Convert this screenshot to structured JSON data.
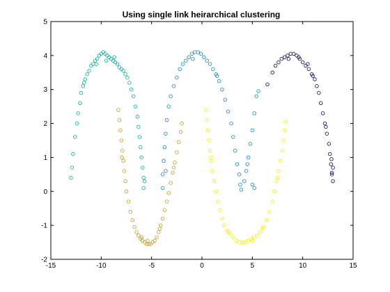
{
  "chart_data": {
    "type": "scatter",
    "title": "Using single link heirarchical clustering",
    "xlabel": "",
    "ylabel": "",
    "xlim": [
      -15,
      15
    ],
    "ylim": [
      -2,
      5
    ],
    "xticks": [
      -15,
      -10,
      -5,
      0,
      5,
      10,
      15
    ],
    "yticks": [
      -2,
      -1,
      0,
      1,
      2,
      3,
      4,
      5
    ],
    "grid": false,
    "marker": "open-circle",
    "series": [
      {
        "color": "#20b2a0",
        "points": [
          [
            -13.0,
            0.4
          ],
          [
            -12.9,
            0.7
          ],
          [
            -12.8,
            1.1
          ],
          [
            -12.6,
            1.6
          ],
          [
            -12.4,
            2.0
          ],
          [
            -12.3,
            2.3
          ],
          [
            -12.1,
            2.6
          ],
          [
            -12.0,
            2.9
          ],
          [
            -11.8,
            3.1
          ],
          [
            -11.6,
            3.3
          ],
          [
            -11.4,
            3.45
          ],
          [
            -11.2,
            3.55
          ],
          [
            -11.0,
            3.7
          ],
          [
            -10.8,
            3.75
          ],
          [
            -10.6,
            3.85
          ],
          [
            -10.4,
            3.9
          ],
          [
            -10.2,
            4.0
          ],
          [
            -10.0,
            4.05
          ],
          [
            -9.8,
            4.1
          ],
          [
            -9.6,
            4.05
          ],
          [
            -9.4,
            4.0
          ],
          [
            -9.2,
            3.95
          ],
          [
            -9.0,
            3.9
          ],
          [
            -8.8,
            3.85
          ],
          [
            -8.6,
            3.8
          ],
          [
            -8.4,
            3.75
          ],
          [
            -8.2,
            3.65
          ],
          [
            -8.0,
            3.6
          ],
          [
            -7.8,
            3.55
          ],
          [
            -7.6,
            3.45
          ],
          [
            -7.4,
            3.35
          ],
          [
            -7.2,
            3.2
          ],
          [
            -7.0,
            3.0
          ],
          [
            -6.8,
            2.8
          ],
          [
            -6.6,
            2.5
          ],
          [
            -6.4,
            2.2
          ],
          [
            -6.3,
            1.9
          ],
          [
            -6.2,
            1.6
          ],
          [
            -6.1,
            1.3
          ],
          [
            -6.0,
            1.0
          ],
          [
            -5.9,
            0.7
          ],
          [
            -5.8,
            0.4
          ],
          [
            -5.8,
            0.1
          ],
          [
            -5.7,
            0.3
          ],
          [
            -10.5,
            3.75
          ],
          [
            -9.5,
            3.85
          ],
          [
            -11.7,
            3.2
          ],
          [
            -8.7,
            3.95
          ]
        ]
      },
      {
        "color": "#c9a236",
        "points": [
          [
            -8.3,
            2.4
          ],
          [
            -8.2,
            2.1
          ],
          [
            -8.1,
            1.8
          ],
          [
            -8.0,
            1.5
          ],
          [
            -7.9,
            1.2
          ],
          [
            -7.8,
            0.9
          ],
          [
            -7.7,
            0.6
          ],
          [
            -7.6,
            0.3
          ],
          [
            -7.5,
            0.0
          ],
          [
            -7.3,
            -0.3
          ],
          [
            -7.1,
            -0.6
          ],
          [
            -6.9,
            -0.85
          ],
          [
            -6.7,
            -1.05
          ],
          [
            -6.5,
            -1.2
          ],
          [
            -6.3,
            -1.3
          ],
          [
            -6.1,
            -1.4
          ],
          [
            -5.9,
            -1.45
          ],
          [
            -5.7,
            -1.5
          ],
          [
            -5.5,
            -1.55
          ],
          [
            -5.3,
            -1.55
          ],
          [
            -5.1,
            -1.55
          ],
          [
            -4.9,
            -1.5
          ],
          [
            -4.7,
            -1.45
          ],
          [
            -4.5,
            -1.35
          ],
          [
            -4.3,
            -1.2
          ],
          [
            -4.1,
            -1.0
          ],
          [
            -3.9,
            -0.8
          ],
          [
            -3.7,
            -0.55
          ],
          [
            -3.5,
            -0.3
          ],
          [
            -3.3,
            -0.05
          ],
          [
            -3.1,
            0.25
          ],
          [
            -2.9,
            0.55
          ],
          [
            -2.7,
            0.85
          ],
          [
            -2.5,
            1.15
          ],
          [
            -2.3,
            1.45
          ],
          [
            -2.1,
            1.75
          ],
          [
            -2.0,
            2.0
          ],
          [
            -7.95,
            1.0
          ],
          [
            -6.0,
            -1.35
          ],
          [
            -4.2,
            -1.1
          ],
          [
            -2.8,
            0.7
          ],
          [
            -5.4,
            -1.45
          ]
        ]
      },
      {
        "color": "#2b8fc4",
        "points": [
          [
            -3.9,
            0.1
          ],
          [
            -3.9,
            0.5
          ],
          [
            -3.8,
            0.9
          ],
          [
            -3.7,
            1.3
          ],
          [
            -3.6,
            1.7
          ],
          [
            -3.5,
            2.1
          ],
          [
            -3.3,
            2.5
          ],
          [
            -3.1,
            2.8
          ],
          [
            -2.8,
            3.1
          ],
          [
            -2.5,
            3.35
          ],
          [
            -2.2,
            3.6
          ],
          [
            -1.9,
            3.75
          ],
          [
            -1.6,
            3.85
          ],
          [
            -1.3,
            3.95
          ],
          [
            -1.0,
            4.05
          ],
          [
            -0.7,
            4.1
          ],
          [
            -0.4,
            4.1
          ],
          [
            -0.1,
            4.05
          ],
          [
            0.2,
            3.95
          ],
          [
            0.5,
            3.85
          ],
          [
            0.8,
            3.75
          ],
          [
            1.1,
            3.6
          ],
          [
            1.4,
            3.45
          ],
          [
            1.7,
            3.25
          ],
          [
            2.0,
            3.0
          ],
          [
            2.3,
            2.7
          ],
          [
            2.6,
            2.35
          ],
          [
            2.9,
            2.0
          ],
          [
            3.1,
            1.6
          ],
          [
            3.3,
            1.2
          ],
          [
            3.5,
            0.8
          ],
          [
            3.7,
            0.5
          ],
          [
            3.8,
            0.2
          ],
          [
            3.9,
            0.05
          ],
          [
            4.2,
            0.3
          ],
          [
            4.4,
            0.6
          ],
          [
            4.6,
            1.0
          ],
          [
            4.8,
            1.4
          ],
          [
            5.0,
            1.8
          ],
          [
            5.2,
            2.3
          ],
          [
            5.4,
            2.8
          ],
          [
            5.6,
            2.95
          ],
          [
            5.0,
            0.2
          ],
          [
            5.2,
            0.1
          ],
          [
            -0.9,
            3.9
          ],
          [
            1.5,
            3.4
          ],
          [
            -3.6,
            0.6
          ],
          [
            4.5,
            0.8
          ]
        ]
      },
      {
        "color": "#f1ef1a",
        "points": [
          [
            0.4,
            2.4
          ],
          [
            0.5,
            2.1
          ],
          [
            0.6,
            1.8
          ],
          [
            0.7,
            1.5
          ],
          [
            0.8,
            1.2
          ],
          [
            0.9,
            0.9
          ],
          [
            1.0,
            0.6
          ],
          [
            1.2,
            0.3
          ],
          [
            1.4,
            0.0
          ],
          [
            1.6,
            -0.3
          ],
          [
            1.8,
            -0.55
          ],
          [
            2.0,
            -0.8
          ],
          [
            2.2,
            -1.0
          ],
          [
            2.5,
            -1.15
          ],
          [
            2.8,
            -1.25
          ],
          [
            3.1,
            -1.35
          ],
          [
            3.4,
            -1.45
          ],
          [
            3.7,
            -1.5
          ],
          [
            4.0,
            -1.5
          ],
          [
            4.3,
            -1.5
          ],
          [
            4.6,
            -1.45
          ],
          [
            4.9,
            -1.4
          ],
          [
            5.2,
            -1.35
          ],
          [
            5.5,
            -1.3
          ],
          [
            5.8,
            -1.2
          ],
          [
            6.1,
            -1.05
          ],
          [
            6.4,
            -0.85
          ],
          [
            6.7,
            -0.6
          ],
          [
            7.0,
            -0.3
          ],
          [
            7.2,
            0.0
          ],
          [
            7.4,
            0.3
          ],
          [
            7.6,
            0.6
          ],
          [
            7.8,
            0.9
          ],
          [
            8.0,
            1.2
          ],
          [
            8.1,
            1.5
          ],
          [
            8.2,
            1.8
          ],
          [
            8.3,
            2.05
          ],
          [
            0.9,
            1.0
          ],
          [
            2.6,
            -1.2
          ],
          [
            5.0,
            -1.45
          ],
          [
            7.5,
            0.4
          ],
          [
            6.0,
            -1.1
          ]
        ]
      },
      {
        "color": "#2a1a66",
        "points": [
          [
            6.5,
            3.15
          ],
          [
            7.0,
            3.5
          ],
          [
            7.3,
            3.7
          ],
          [
            7.6,
            3.8
          ],
          [
            7.9,
            3.9
          ],
          [
            8.2,
            3.95
          ],
          [
            8.5,
            4.0
          ],
          [
            8.8,
            4.05
          ],
          [
            9.1,
            4.05
          ],
          [
            9.4,
            4.0
          ],
          [
            9.7,
            3.9
          ],
          [
            10.0,
            3.8
          ],
          [
            10.3,
            3.7
          ],
          [
            10.6,
            3.6
          ],
          [
            10.9,
            3.45
          ],
          [
            11.2,
            3.3
          ],
          [
            11.4,
            3.1
          ],
          [
            11.6,
            2.9
          ],
          [
            11.8,
            2.6
          ],
          [
            12.0,
            2.3
          ],
          [
            12.2,
            2.0
          ],
          [
            12.4,
            1.7
          ],
          [
            12.6,
            1.4
          ],
          [
            12.7,
            1.1
          ],
          [
            12.8,
            0.8
          ],
          [
            12.9,
            0.5
          ],
          [
            13.0,
            0.3
          ],
          [
            13.0,
            0.7
          ],
          [
            12.9,
            0.55
          ],
          [
            8.6,
            3.9
          ],
          [
            9.6,
            3.95
          ],
          [
            11.0,
            3.4
          ],
          [
            12.3,
            1.9
          ],
          [
            10.5,
            3.75
          ],
          [
            12.85,
            0.95
          ]
        ]
      }
    ]
  }
}
